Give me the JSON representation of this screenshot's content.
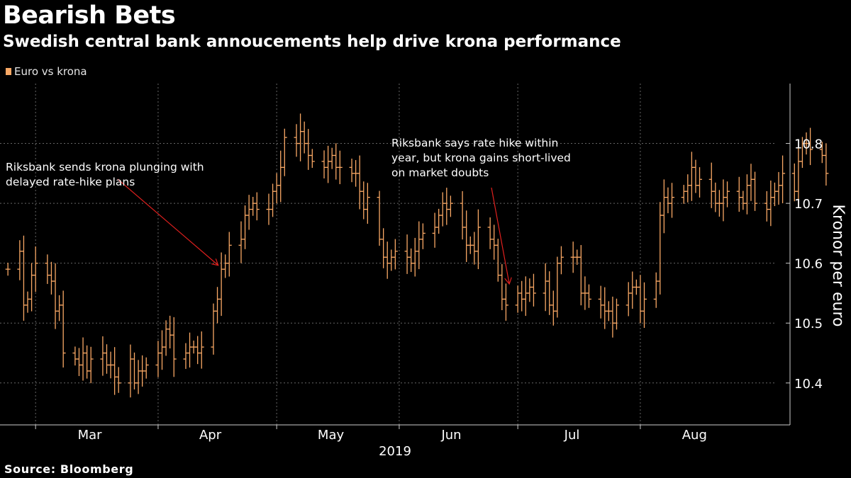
{
  "header": {
    "title": "Bearish Bets",
    "subtitle": "Swedish central bank annoucements help drive krona performance"
  },
  "footer": {
    "source": "Source: Bloomberg"
  },
  "colors": {
    "series": "#f9a865",
    "grid": "#666666",
    "arrow": "#e0201e",
    "axis": "#cccccc"
  },
  "chart_data": {
    "type": "line",
    "style": "ohlc",
    "title": "Bearish Bets",
    "subtitle": "Swedish central bank annoucements help drive krona performance",
    "legend": {
      "position": "top-left",
      "entries": [
        "Euro vs krona"
      ]
    },
    "xlabel": "2019",
    "ylabel": "Kronor per euro",
    "yticks": [
      10.4,
      10.5,
      10.6,
      10.7,
      10.8
    ],
    "ylim": [
      10.33,
      10.9
    ],
    "x_month_labels": [
      "Mar",
      "Apr",
      "May",
      "Jun",
      "Jul",
      "Aug"
    ],
    "month_boundaries": [
      "2019-03-01",
      "2019-04-01",
      "2019-05-01",
      "2019-06-01",
      "2019-07-01",
      "2019-08-01",
      "2019-09-01"
    ],
    "grid": true,
    "start_date": "2019-02-22",
    "series": [
      {
        "name": "Euro vs krona",
        "values": [
          10.59,
          10.62,
          10.53,
          10.54,
          10.58,
          10.6,
          10.58,
          10.57,
          10.52,
          10.53,
          10.45,
          10.44,
          10.43,
          10.45,
          10.42,
          10.44,
          10.45,
          10.43,
          10.43,
          10.41,
          10.4,
          10.44,
          10.4,
          10.42,
          10.42,
          10.43,
          10.45,
          10.46,
          10.49,
          10.48,
          10.44,
          10.45,
          10.46,
          10.46,
          10.45,
          10.46,
          10.52,
          10.54,
          10.59,
          10.6,
          10.63,
          10.64,
          10.68,
          10.69,
          10.7,
          10.69,
          10.69,
          10.72,
          10.73,
          10.76,
          10.81,
          10.8,
          10.82,
          10.8,
          10.78,
          10.77,
          10.76,
          10.77,
          10.78,
          10.76,
          10.76,
          10.75,
          10.75,
          10.72,
          10.69,
          10.71,
          10.64,
          10.61,
          10.6,
          10.61,
          10.62,
          10.61,
          10.6,
          10.62,
          10.64,
          10.65,
          10.66,
          10.68,
          10.7,
          10.69,
          10.7,
          10.66,
          10.63,
          10.63,
          10.62,
          10.66,
          10.64,
          10.63,
          10.58,
          10.54,
          10.53,
          10.55,
          10.54,
          10.55,
          10.56,
          10.55,
          10.57,
          10.53,
          10.52,
          10.6,
          10.61,
          10.61,
          10.61,
          10.55,
          10.55,
          10.54,
          10.53,
          10.52,
          10.52,
          10.5,
          10.53,
          10.55,
          10.56,
          10.56,
          10.52,
          10.54,
          10.57,
          10.68,
          10.71,
          10.7,
          10.71,
          10.72,
          10.73,
          10.76,
          10.73,
          10.74,
          10.72,
          10.7,
          10.7,
          10.71,
          10.72,
          10.71,
          10.7,
          10.73,
          10.74,
          10.7,
          10.69,
          10.71,
          10.72,
          10.73,
          10.75,
          10.72,
          10.77,
          10.8,
          10.8,
          10.79,
          10.78,
          10.75
        ]
      }
    ],
    "annotations": [
      {
        "text": "Riksbank sends krona plunging with\ndelayed rate-hike plans",
        "date": "2019-04-25"
      },
      {
        "text": "Riksbank says rate hike within\nyear, but krona gains short-lived\non market doubts",
        "date": "2019-06-25"
      }
    ]
  }
}
